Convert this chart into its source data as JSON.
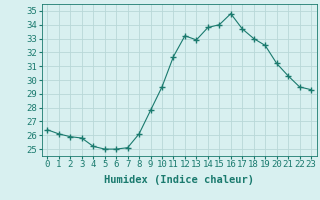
{
  "x": [
    0,
    1,
    2,
    3,
    4,
    5,
    6,
    7,
    8,
    9,
    10,
    11,
    12,
    13,
    14,
    15,
    16,
    17,
    18,
    19,
    20,
    21,
    22,
    23
  ],
  "y": [
    26.4,
    26.1,
    25.9,
    25.8,
    25.2,
    25.0,
    25.0,
    25.1,
    26.1,
    27.8,
    29.5,
    31.7,
    33.2,
    32.9,
    33.8,
    34.0,
    34.8,
    33.7,
    33.0,
    32.5,
    31.2,
    30.3,
    29.5,
    29.3
  ],
  "line_color": "#1a7a6e",
  "marker": "+",
  "marker_size": 4,
  "bg_color": "#d8f0f0",
  "grid_color": "#b8d8d8",
  "xlabel": "Humidex (Indice chaleur)",
  "ylabel_ticks": [
    25,
    26,
    27,
    28,
    29,
    30,
    31,
    32,
    33,
    34,
    35
  ],
  "ylim": [
    24.5,
    35.5
  ],
  "xlim": [
    -0.5,
    23.5
  ],
  "tick_color": "#1a7a6e",
  "label_color": "#1a7a6e",
  "xlabel_fontsize": 7.5,
  "tick_fontsize": 6.5
}
